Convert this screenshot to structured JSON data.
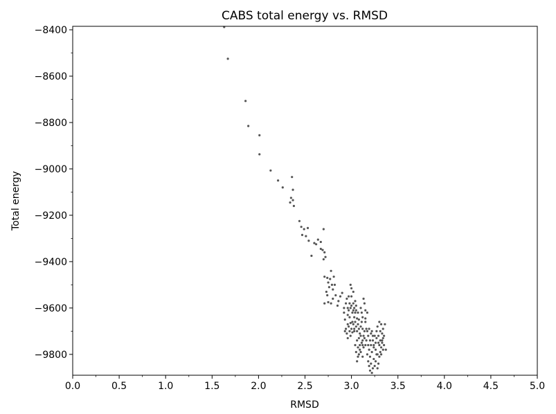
{
  "chart_data": {
    "type": "scatter",
    "title": "CABS total energy vs. RMSD",
    "xlabel": "RMSD",
    "ylabel": "Total energy",
    "xlim": [
      0.0,
      5.0
    ],
    "ylim": [
      -9890,
      -8385
    ],
    "x_ticks": [
      0.0,
      0.5,
      1.0,
      1.5,
      2.0,
      2.5,
      3.0,
      3.5,
      4.0,
      4.5,
      5.0
    ],
    "x_tick_labels": [
      "0.0",
      "0.5",
      "1.0",
      "1.5",
      "2.0",
      "2.5",
      "3.0",
      "3.5",
      "4.0",
      "4.5",
      "5.0"
    ],
    "y_ticks": [
      -9800,
      -9600,
      -9400,
      -9200,
      -9000,
      -8800,
      -8600,
      -8400
    ],
    "y_tick_labels": [
      "−9800",
      "−9600",
      "−9400",
      "−9200",
      "−9000",
      "−8800",
      "−8600",
      "−8400"
    ],
    "grid": false,
    "legend": false,
    "point_color": "#555555",
    "series": [
      {
        "points": [
          [
            1.63,
            -8388
          ],
          [
            1.67,
            -8525
          ],
          [
            1.86,
            -8707
          ],
          [
            1.89,
            -8815
          ],
          [
            2.01,
            -8855
          ],
          [
            2.01,
            -8937
          ],
          [
            2.13,
            -9007
          ],
          [
            2.21,
            -9050
          ],
          [
            2.26,
            -9080
          ],
          [
            2.34,
            -9145
          ],
          [
            2.35,
            -9125
          ],
          [
            2.36,
            -9035
          ],
          [
            2.37,
            -9090
          ],
          [
            2.37,
            -9135
          ],
          [
            2.38,
            -9160
          ],
          [
            2.44,
            -9225
          ],
          [
            2.46,
            -9250
          ],
          [
            2.47,
            -9285
          ],
          [
            2.49,
            -9260
          ],
          [
            2.51,
            -9290
          ],
          [
            2.53,
            -9255
          ],
          [
            2.54,
            -9310
          ],
          [
            2.57,
            -9375
          ],
          [
            2.6,
            -9320
          ],
          [
            2.62,
            -9325
          ],
          [
            2.64,
            -9305
          ],
          [
            2.67,
            -9315
          ],
          [
            2.67,
            -9345
          ],
          [
            2.69,
            -9350
          ],
          [
            2.7,
            -9260
          ],
          [
            2.7,
            -9390
          ],
          [
            2.71,
            -9360
          ],
          [
            2.72,
            -9380
          ],
          [
            2.71,
            -9465
          ],
          [
            2.74,
            -9470
          ],
          [
            2.75,
            -9490
          ],
          [
            2.76,
            -9510
          ],
          [
            2.77,
            -9475
          ],
          [
            2.78,
            -9440
          ],
          [
            2.79,
            -9500
          ],
          [
            2.8,
            -9520
          ],
          [
            2.81,
            -9465
          ],
          [
            2.82,
            -9500
          ],
          [
            2.73,
            -9530
          ],
          [
            2.75,
            -9575
          ],
          [
            2.78,
            -9580
          ],
          [
            2.8,
            -9560
          ],
          [
            2.83,
            -9545
          ],
          [
            2.85,
            -9590
          ],
          [
            2.86,
            -9570
          ],
          [
            2.88,
            -9550
          ],
          [
            2.71,
            -9580
          ],
          [
            2.74,
            -9545
          ],
          [
            2.9,
            -9535
          ],
          [
            2.92,
            -9600
          ],
          [
            2.92,
            -9620
          ],
          [
            2.93,
            -9650
          ],
          [
            2.94,
            -9580
          ],
          [
            2.95,
            -9560
          ],
          [
            2.96,
            -9600
          ],
          [
            2.96,
            -9630
          ],
          [
            2.97,
            -9610
          ],
          [
            2.98,
            -9580
          ],
          [
            2.98,
            -9640
          ],
          [
            2.99,
            -9600
          ],
          [
            3.0,
            -9550
          ],
          [
            3.0,
            -9590
          ],
          [
            3.01,
            -9620
          ],
          [
            3.01,
            -9660
          ],
          [
            3.02,
            -9580
          ],
          [
            3.02,
            -9610
          ],
          [
            3.03,
            -9600
          ],
          [
            3.03,
            -9640
          ],
          [
            3.04,
            -9570
          ],
          [
            3.04,
            -9620
          ],
          [
            3.05,
            -9610
          ],
          [
            3.05,
            -9590
          ],
          [
            2.99,
            -9500
          ],
          [
            3.0,
            -9515
          ],
          [
            3.02,
            -9530
          ],
          [
            2.97,
            -9550
          ],
          [
            2.94,
            -9690
          ],
          [
            2.95,
            -9710
          ],
          [
            2.96,
            -9730
          ],
          [
            2.97,
            -9680
          ],
          [
            2.98,
            -9700
          ],
          [
            2.99,
            -9720
          ],
          [
            3.0,
            -9690
          ],
          [
            3.01,
            -9705
          ],
          [
            3.02,
            -9670
          ],
          [
            3.03,
            -9690
          ],
          [
            3.04,
            -9660
          ],
          [
            3.05,
            -9680
          ],
          [
            3.06,
            -9700
          ],
          [
            3.07,
            -9670
          ],
          [
            3.08,
            -9650
          ],
          [
            3.08,
            -9690
          ],
          [
            3.09,
            -9710
          ],
          [
            3.1,
            -9680
          ],
          [
            3.11,
            -9660
          ],
          [
            3.12,
            -9690
          ],
          [
            3.13,
            -9720
          ],
          [
            3.13,
            -9560
          ],
          [
            3.14,
            -9580
          ],
          [
            3.15,
            -9610
          ],
          [
            3.1,
            -9600
          ],
          [
            3.07,
            -9620
          ],
          [
            3.12,
            -9640
          ],
          [
            3.15,
            -9660
          ],
          [
            3.16,
            -9690
          ],
          [
            3.17,
            -9700
          ],
          [
            3.04,
            -9760
          ],
          [
            3.05,
            -9790
          ],
          [
            3.06,
            -9740
          ],
          [
            3.07,
            -9770
          ],
          [
            3.08,
            -9730
          ],
          [
            3.09,
            -9760
          ],
          [
            3.1,
            -9720
          ],
          [
            3.11,
            -9750
          ],
          [
            3.12,
            -9740
          ],
          [
            3.13,
            -9770
          ],
          [
            3.14,
            -9730
          ],
          [
            3.15,
            -9760
          ],
          [
            3.06,
            -9830
          ],
          [
            3.08,
            -9800
          ],
          [
            3.1,
            -9790
          ],
          [
            3.12,
            -9810
          ],
          [
            3.17,
            -9800
          ],
          [
            3.18,
            -9830
          ],
          [
            3.19,
            -9780
          ],
          [
            3.2,
            -9810
          ],
          [
            3.21,
            -9760
          ],
          [
            3.22,
            -9790
          ],
          [
            3.23,
            -9740
          ],
          [
            3.24,
            -9770
          ],
          [
            3.25,
            -9720
          ],
          [
            3.26,
            -9750
          ],
          [
            3.27,
            -9700
          ],
          [
            3.28,
            -9680
          ],
          [
            3.29,
            -9720
          ],
          [
            3.3,
            -9660
          ],
          [
            3.31,
            -9700
          ],
          [
            3.32,
            -9670
          ],
          [
            3.33,
            -9740
          ],
          [
            3.34,
            -9690
          ],
          [
            3.35,
            -9720
          ],
          [
            3.36,
            -9670
          ],
          [
            3.37,
            -9780
          ],
          [
            3.19,
            -9850
          ],
          [
            3.2,
            -9870
          ],
          [
            3.21,
            -9840
          ],
          [
            3.22,
            -9880
          ],
          [
            3.23,
            -9860
          ],
          [
            3.24,
            -9820
          ],
          [
            3.25,
            -9850
          ],
          [
            3.26,
            -9830
          ],
          [
            3.27,
            -9800
          ],
          [
            3.28,
            -9860
          ],
          [
            3.29,
            -9840
          ],
          [
            3.3,
            -9810
          ],
          [
            3.31,
            -9790
          ],
          [
            3.32,
            -9770
          ],
          [
            3.33,
            -9750
          ],
          [
            3.34,
            -9730
          ],
          [
            3.18,
            -9720
          ],
          [
            3.2,
            -9740
          ],
          [
            3.22,
            -9700
          ],
          [
            3.24,
            -9760
          ],
          [
            3.26,
            -9780
          ],
          [
            3.28,
            -9800
          ],
          [
            3.3,
            -9760
          ],
          [
            3.32,
            -9800
          ],
          [
            3.34,
            -9780
          ],
          [
            3.14,
            -9700
          ],
          [
            3.16,
            -9740
          ],
          [
            3.18,
            -9760
          ],
          [
            3.12,
            -9760
          ],
          [
            3.09,
            -9780
          ],
          [
            3.07,
            -9810
          ],
          [
            3.19,
            -9690
          ],
          [
            3.21,
            -9710
          ],
          [
            3.23,
            -9720
          ],
          [
            3.27,
            -9730
          ],
          [
            3.29,
            -9750
          ],
          [
            3.31,
            -9740
          ],
          [
            3.33,
            -9710
          ],
          [
            3.35,
            -9760
          ],
          [
            3.17,
            -9620
          ],
          [
            3.15,
            -9645
          ],
          [
            3.11,
            -9620
          ],
          [
            3.06,
            -9645
          ],
          [
            3.03,
            -9700
          ],
          [
            2.99,
            -9665
          ],
          [
            2.96,
            -9670
          ],
          [
            2.93,
            -9700
          ]
        ]
      }
    ]
  }
}
